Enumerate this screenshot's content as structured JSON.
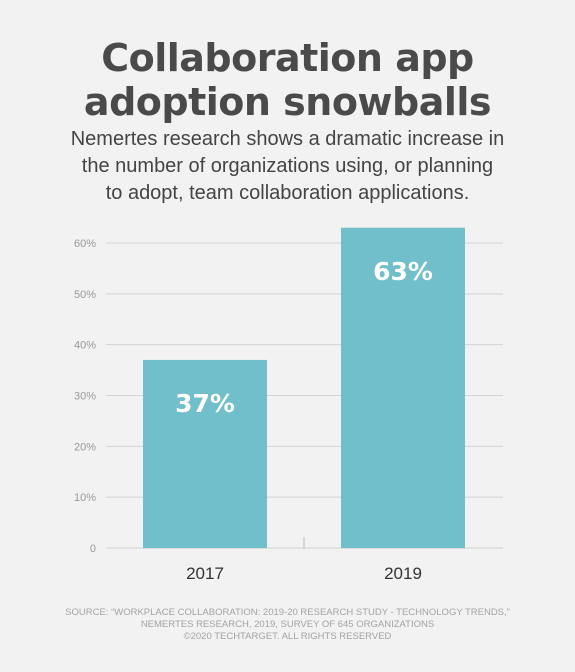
{
  "title_line1": "Collaboration app",
  "title_line2": "adoption snowballs",
  "subtitle_line1": "Nemertes research shows a dramatic increase in",
  "subtitle_line2": "the number of organizations using, or planning",
  "subtitle_line3": "to adopt, team collaboration applications.",
  "source_line1": "SOURCE: “WORKPLACE COLLABORATION: 2019-20 RESEARCH STUDY - TECHNOLOGY TRENDS,”",
  "source_line2": "NEMERTES RESEARCH, 2019, SURVEY OF 645 ORGANIZATIONS",
  "source_line3": "©2020 TECHTARGET. ALL RIGHTS RESERVED",
  "colors": {
    "background": "#f2f2f2",
    "bar": "#72bfcc",
    "grid": "#d3d3d3",
    "title": "#4a4a4a"
  },
  "chart_data": {
    "type": "bar",
    "categories": [
      "2017",
      "2019"
    ],
    "values": [
      37,
      63
    ],
    "data_labels": [
      "37%",
      "63%"
    ],
    "ylim": [
      0,
      60
    ],
    "yticks": [
      0,
      10,
      20,
      30,
      40,
      50,
      60
    ],
    "ytick_labels": [
      "0",
      "10%",
      "20%",
      "30%",
      "40%",
      "50%",
      "60%"
    ],
    "grid": true,
    "legend": "none",
    "xlabel": "",
    "ylabel": ""
  }
}
